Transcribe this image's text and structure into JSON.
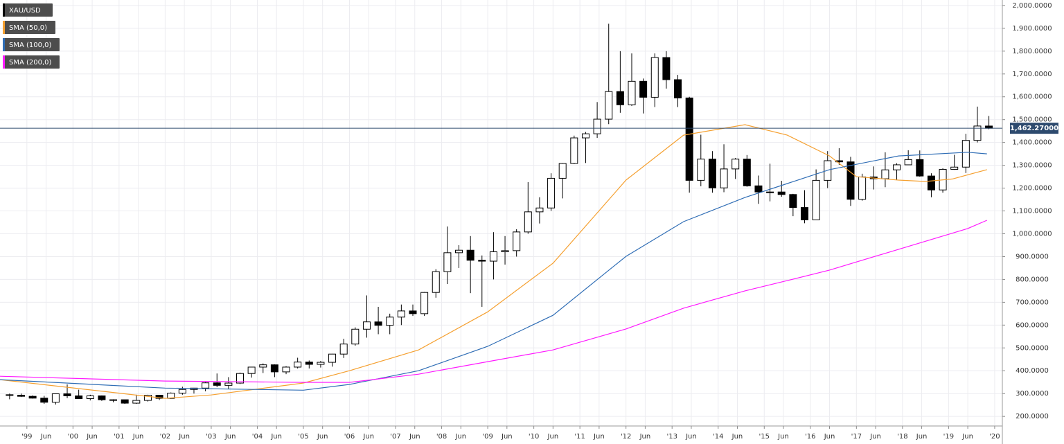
{
  "chart_data": {
    "type": "candlestick",
    "xlim": [
      "1998-06",
      "2020-03"
    ],
    "ylim": [
      158,
      2024
    ],
    "grid": true,
    "yticks": [
      {
        "value": 200,
        "label": "200.0000"
      },
      {
        "value": 300,
        "label": "300.0000"
      },
      {
        "value": 400,
        "label": "400.0000"
      },
      {
        "value": 500,
        "label": "500.0000"
      },
      {
        "value": 600,
        "label": "600.0000"
      },
      {
        "value": 700,
        "label": "700.0000"
      },
      {
        "value": 800,
        "label": "800.0000"
      },
      {
        "value": 900,
        "label": "900.0000"
      },
      {
        "value": 1000,
        "label": "1,000.0000"
      },
      {
        "value": 1100,
        "label": "1,100.0000"
      },
      {
        "value": 1200,
        "label": "1,200.0000"
      },
      {
        "value": 1300,
        "label": "1,300.0000"
      },
      {
        "value": 1400,
        "label": "1,400.0000"
      },
      {
        "value": 1500,
        "label": "1,500.0000"
      },
      {
        "value": 1600,
        "label": "1,600.0000"
      },
      {
        "value": 1700,
        "label": "1,700.0000"
      },
      {
        "value": 1800,
        "label": "1,800.0000"
      },
      {
        "value": 1900,
        "label": "1,900.0000"
      },
      {
        "value": 2000,
        "label": "2,000.0000"
      }
    ],
    "xticks": [
      {
        "value": "1999-01",
        "label": "'99"
      },
      {
        "value": "1999-06",
        "label": "Jun"
      },
      {
        "value": "2000-01",
        "label": "'00"
      },
      {
        "value": "2000-06",
        "label": "Jun"
      },
      {
        "value": "2001-01",
        "label": "'01"
      },
      {
        "value": "2001-06",
        "label": "Jun"
      },
      {
        "value": "2002-01",
        "label": "'02"
      },
      {
        "value": "2002-06",
        "label": "Jun"
      },
      {
        "value": "2003-01",
        "label": "'03"
      },
      {
        "value": "2003-06",
        "label": "Jun"
      },
      {
        "value": "2004-01",
        "label": "'04"
      },
      {
        "value": "2004-06",
        "label": "Jun"
      },
      {
        "value": "2005-01",
        "label": "'05"
      },
      {
        "value": "2005-06",
        "label": "Jun"
      },
      {
        "value": "2006-01",
        "label": "'06"
      },
      {
        "value": "2006-06",
        "label": "Jun"
      },
      {
        "value": "2007-01",
        "label": "'07"
      },
      {
        "value": "2007-06",
        "label": "Jun"
      },
      {
        "value": "2008-01",
        "label": "'08"
      },
      {
        "value": "2008-06",
        "label": "Jun"
      },
      {
        "value": "2009-01",
        "label": "'09"
      },
      {
        "value": "2009-06",
        "label": "Jun"
      },
      {
        "value": "2010-01",
        "label": "'10"
      },
      {
        "value": "2010-06",
        "label": "Jun"
      },
      {
        "value": "2011-01",
        "label": "'11"
      },
      {
        "value": "2011-06",
        "label": "Jun"
      },
      {
        "value": "2012-01",
        "label": "'12"
      },
      {
        "value": "2012-06",
        "label": "Jun"
      },
      {
        "value": "2013-01",
        "label": "'13"
      },
      {
        "value": "2013-06",
        "label": "Jun"
      },
      {
        "value": "2014-01",
        "label": "'14"
      },
      {
        "value": "2014-06",
        "label": "Jun"
      },
      {
        "value": "2015-01",
        "label": "'15"
      },
      {
        "value": "2015-06",
        "label": "Jun"
      },
      {
        "value": "2016-01",
        "label": "'16"
      },
      {
        "value": "2016-06",
        "label": "Jun"
      },
      {
        "value": "2017-01",
        "label": "'17"
      },
      {
        "value": "2017-06",
        "label": "Jun"
      },
      {
        "value": "2018-01",
        "label": "'18"
      },
      {
        "value": "2018-06",
        "label": "Jun"
      },
      {
        "value": "2019-01",
        "label": "'19"
      },
      {
        "value": "2019-06",
        "label": "Jun"
      },
      {
        "value": "2020-01",
        "label": "'20"
      }
    ],
    "last_price": {
      "value": 1462.27,
      "label": "1,462.27000",
      "color": "#2d4a6e"
    },
    "series": [
      {
        "name": "XAU/USD",
        "type": "candlestick",
        "color": "#000000",
        "up_color": "#ffffff",
        "down_color": "#000000",
        "x": [
          "1998-07",
          "1998-10",
          "1999-01",
          "1999-04",
          "1999-07",
          "1999-10",
          "2000-01",
          "2000-04",
          "2000-07",
          "2000-10",
          "2001-01",
          "2001-04",
          "2001-07",
          "2001-10",
          "2002-01",
          "2002-04",
          "2002-07",
          "2002-10",
          "2003-01",
          "2003-04",
          "2003-07",
          "2003-10",
          "2004-01",
          "2004-04",
          "2004-07",
          "2004-10",
          "2005-01",
          "2005-04",
          "2005-07",
          "2005-10",
          "2006-01",
          "2006-04",
          "2006-07",
          "2006-10",
          "2007-01",
          "2007-04",
          "2007-07",
          "2007-10",
          "2008-01",
          "2008-04",
          "2008-07",
          "2008-10",
          "2009-01",
          "2009-04",
          "2009-07",
          "2009-10",
          "2010-01",
          "2010-04",
          "2010-07",
          "2010-10",
          "2011-01",
          "2011-04",
          "2011-07",
          "2011-10",
          "2012-01",
          "2012-04",
          "2012-07",
          "2012-10",
          "2013-01",
          "2013-04",
          "2013-07",
          "2013-10",
          "2014-01",
          "2014-04",
          "2014-07",
          "2014-10",
          "2015-01",
          "2015-04",
          "2015-07",
          "2015-10",
          "2016-01",
          "2016-04",
          "2016-07",
          "2016-10",
          "2017-01",
          "2017-04",
          "2017-07",
          "2017-10",
          "2018-01",
          "2018-04",
          "2018-07",
          "2018-10",
          "2019-01",
          "2019-04",
          "2019-07",
          "2019-10"
        ],
        "open": [
          295,
          293,
          288,
          280,
          262,
          299,
          290,
          278,
          290,
          273,
          273,
          258,
          270,
          293,
          279,
          302,
          318,
          324,
          347,
          336,
          346,
          388,
          416,
          426,
          395,
          416,
          438,
          428,
          437,
          473,
          517,
          582,
          614,
          599,
          635,
          662,
          650,
          743,
          834,
          917,
          928,
          884,
          880,
          921,
          926,
          1008,
          1096,
          1113,
          1243,
          1308,
          1420,
          1438,
          1502,
          1623,
          1565,
          1668,
          1598,
          1772,
          1675,
          1595,
          1234,
          1327,
          1201,
          1284,
          1327,
          1210,
          1183,
          1183,
          1172,
          1115,
          1061,
          1234,
          1320,
          1315,
          1151,
          1249,
          1241,
          1280,
          1302,
          1325,
          1253,
          1192,
          1282,
          1292,
          1409,
          1472
        ],
        "high": [
          300,
          300,
          292,
          290,
          300,
          340,
          317,
          295,
          292,
          275,
          273,
          295,
          295,
          294,
          305,
          330,
          325,
          350,
          388,
          372,
          392,
          417,
          432,
          428,
          420,
          457,
          445,
          443,
          474,
          540,
          590,
          730,
          680,
          650,
          690,
          690,
          745,
          845,
          1032,
          950,
          990,
          905,
          1007,
          990,
          1020,
          1226,
          1160,
          1265,
          1310,
          1430,
          1446,
          1577,
          1920,
          1800,
          1790,
          1680,
          1790,
          1800,
          1696,
          1600,
          1434,
          1362,
          1392,
          1332,
          1345,
          1255,
          1307,
          1232,
          1175,
          1191,
          1282,
          1362,
          1375,
          1337,
          1263,
          1295,
          1357,
          1309,
          1366,
          1365,
          1265,
          1287,
          1346,
          1438,
          1557,
          1516
        ],
        "low": [
          275,
          285,
          278,
          255,
          252,
          280,
          278,
          270,
          268,
          262,
          255,
          255,
          265,
          272,
          277,
          295,
          300,
          310,
          328,
          320,
          342,
          370,
          390,
          372,
          385,
          410,
          410,
          414,
          418,
          456,
          510,
          545,
          560,
          560,
          600,
          640,
          640,
          720,
          780,
          850,
          740,
          680,
          800,
          865,
          900,
          1000,
          1045,
          1100,
          1155,
          1305,
          1310,
          1420,
          1480,
          1530,
          1560,
          1527,
          1555,
          1636,
          1555,
          1180,
          1208,
          1180,
          1182,
          1240,
          1206,
          1131,
          1142,
          1162,
          1077,
          1046,
          1061,
          1200,
          1302,
          1122,
          1145,
          1194,
          1204,
          1236,
          1302,
          1250,
          1160,
          1180,
          1280,
          1266,
          1400,
          1458
        ],
        "close": [
          293,
          288,
          280,
          262,
          299,
          290,
          278,
          290,
          273,
          273,
          258,
          270,
          293,
          279,
          302,
          318,
          324,
          347,
          336,
          346,
          388,
          416,
          426,
          395,
          416,
          438,
          428,
          437,
          473,
          517,
          582,
          614,
          599,
          635,
          662,
          650,
          743,
          834,
          917,
          928,
          884,
          880,
          921,
          926,
          1008,
          1096,
          1113,
          1243,
          1308,
          1420,
          1438,
          1502,
          1623,
          1565,
          1668,
          1598,
          1772,
          1675,
          1595,
          1234,
          1327,
          1201,
          1284,
          1327,
          1210,
          1183,
          1183,
          1172,
          1115,
          1061,
          1234,
          1320,
          1315,
          1151,
          1249,
          1241,
          1280,
          1302,
          1325,
          1253,
          1192,
          1282,
          1292,
          1409,
          1472,
          1462.27
        ]
      },
      {
        "name": "SMA (50,0)",
        "type": "line",
        "color": "#f5a030",
        "x": [
          "1998-06",
          "2002-01",
          "2003-01",
          "2005-01",
          "2006-01",
          "2007-07",
          "2009-01",
          "2010-06",
          "2012-01",
          "2013-04",
          "2014-08",
          "2015-07",
          "2016-06",
          "2017-01",
          "2017-12",
          "2018-07",
          "2019-02",
          "2019-11"
        ],
        "values": [
          361,
          279,
          294,
          346,
          400,
          491,
          658,
          871,
          1235,
          1432,
          1478,
          1432,
          1341,
          1250,
          1235,
          1229,
          1240,
          1281
        ]
      },
      {
        "name": "SMA (100,0)",
        "type": "line",
        "color": "#2f6db5",
        "x": [
          "1998-06",
          "2002-01",
          "2005-01",
          "2006-01",
          "2007-07",
          "2009-01",
          "2010-06",
          "2012-01",
          "2013-04",
          "2014-08",
          "2015-07",
          "2016-06",
          "2017-12",
          "2019-06",
          "2019-11"
        ],
        "values": [
          361,
          324,
          315,
          340,
          400,
          507,
          643,
          901,
          1053,
          1159,
          1220,
          1281,
          1341,
          1357,
          1350
        ]
      },
      {
        "name": "SMA (200,0)",
        "type": "line",
        "color": "#ff1aff",
        "x": [
          "1998-06",
          "2002-01",
          "2005-01",
          "2006-01",
          "2007-07",
          "2009-01",
          "2010-06",
          "2012-01",
          "2013-04",
          "2014-08",
          "2015-07",
          "2016-06",
          "2017-12",
          "2019-06",
          "2019-11"
        ],
        "values": [
          376,
          355,
          349,
          349,
          385,
          440,
          491,
          583,
          674,
          750,
          795,
          841,
          932,
          1023,
          1059
        ]
      }
    ]
  }
}
